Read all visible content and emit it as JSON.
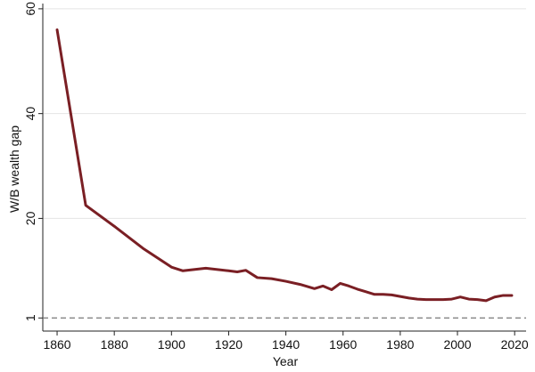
{
  "chart_data": {
    "type": "line",
    "title": "",
    "xlabel": "Year",
    "ylabel": "W/B wealth gap",
    "xlim": [
      1855,
      2024
    ],
    "ylim": [
      -1.5,
      61
    ],
    "x_ticks": [
      1860,
      1880,
      1900,
      1920,
      1940,
      1960,
      1980,
      2000,
      2020
    ],
    "y_ticks": [
      1,
      20,
      40,
      60
    ],
    "grid": "horizontal",
    "reference_line": {
      "y": 1,
      "style": "dashed"
    },
    "series": [
      {
        "color": "#7a1f24",
        "x": [
          1860,
          1870,
          1880,
          1890,
          1900,
          1904,
          1912,
          1920,
          1923,
          1926,
          1930,
          1935,
          1940,
          1945,
          1950,
          1953,
          1956,
          1959,
          1962,
          1965,
          1968,
          1971,
          1974,
          1977,
          1980,
          1983,
          1986,
          1989,
          1992,
          1995,
          1998,
          2001,
          2004,
          2007,
          2010,
          2013,
          2016,
          2019
        ],
        "y": [
          56.0,
          22.5,
          18.5,
          14.3,
          10.7,
          10.0,
          10.5,
          10.0,
          9.8,
          10.1,
          8.7,
          8.5,
          8.0,
          7.4,
          6.6,
          7.1,
          6.4,
          7.6,
          7.1,
          6.5,
          6.0,
          5.5,
          5.5,
          5.4,
          5.1,
          4.8,
          4.6,
          4.5,
          4.5,
          4.5,
          4.6,
          5.0,
          4.6,
          4.5,
          4.3,
          5.0,
          5.3,
          5.3
        ]
      }
    ]
  }
}
